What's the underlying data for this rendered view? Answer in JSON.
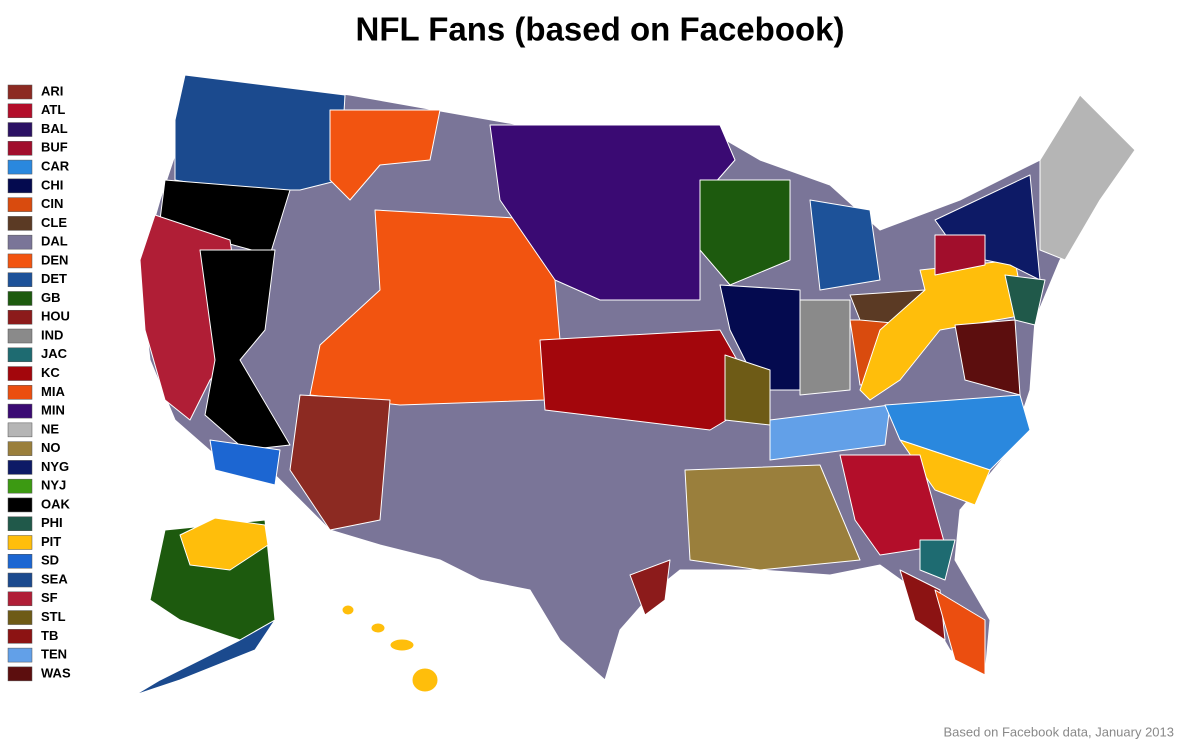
{
  "title": "NFL Fans (based on Facebook)",
  "legend": [
    {
      "label": "ARI",
      "color": "#8c2a22"
    },
    {
      "label": "ATL",
      "color": "#b30e2a"
    },
    {
      "label": "BAL",
      "color": "#2b1163"
    },
    {
      "label": "BUF",
      "color": "#a10e2c"
    },
    {
      "label": "CAR",
      "color": "#2a88de"
    },
    {
      "label": "CHI",
      "color": "#040a4f"
    },
    {
      "label": "CIN",
      "color": "#d94b0e"
    },
    {
      "label": "CLE",
      "color": "#5b3a24"
    },
    {
      "label": "DAL",
      "color": "#7a7598"
    },
    {
      "label": "DEN",
      "color": "#f25410"
    },
    {
      "label": "DET",
      "color": "#1d5299"
    },
    {
      "label": "GB",
      "color": "#1d5a0e"
    },
    {
      "label": "HOU",
      "color": "#8c1b1b"
    },
    {
      "label": "IND",
      "color": "#8a8a8a"
    },
    {
      "label": "JAC",
      "color": "#1e6b71"
    },
    {
      "label": "KC",
      "color": "#a3060c"
    },
    {
      "label": "MIA",
      "color": "#eb4e10"
    },
    {
      "label": "MIN",
      "color": "#3a0a73"
    },
    {
      "label": "NE",
      "color": "#b5b5b5"
    },
    {
      "label": "NO",
      "color": "#9a7f3c"
    },
    {
      "label": "NYG",
      "color": "#0d1a66"
    },
    {
      "label": "NYJ",
      "color": "#3c9a12"
    },
    {
      "label": "OAK",
      "color": "#000000"
    },
    {
      "label": "PHI",
      "color": "#20594a"
    },
    {
      "label": "PIT",
      "color": "#ffbe0b"
    },
    {
      "label": "SD",
      "color": "#1c66d2"
    },
    {
      "label": "SEA",
      "color": "#1b4a8e"
    },
    {
      "label": "SF",
      "color": "#b01e36"
    },
    {
      "label": "STL",
      "color": "#6e5b16"
    },
    {
      "label": "TB",
      "color": "#8c1313"
    },
    {
      "label": "TEN",
      "color": "#62a0e8"
    },
    {
      "label": "WAS",
      "color": "#5c0e0e"
    }
  ],
  "footnote": "Based on Facebook data, January 2013"
}
